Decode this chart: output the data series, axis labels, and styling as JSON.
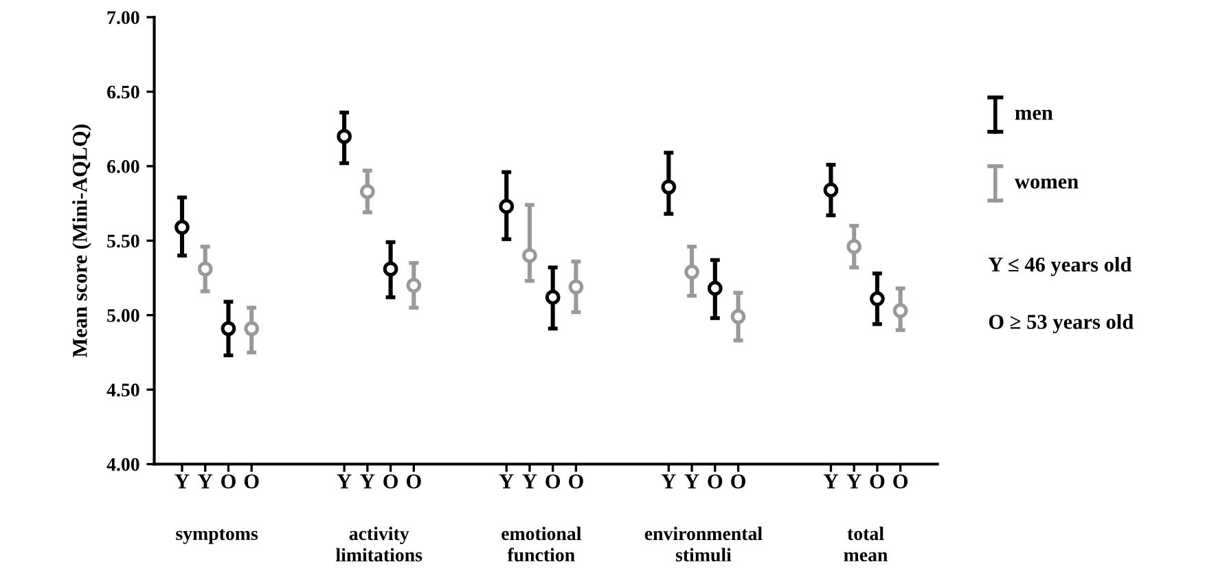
{
  "chart_data": {
    "type": "scatter",
    "ylabel": "Mean score (Mini-AQLQ)",
    "categories": [
      "Y",
      "Y",
      "O",
      "O",
      null,
      null,
      null,
      "Y",
      "Y",
      "O",
      "O",
      null,
      null,
      null,
      "Y",
      "Y",
      "O",
      "O",
      null,
      null,
      null,
      "Y",
      "Y",
      "O",
      "O",
      null,
      null,
      null,
      "Y",
      "Y",
      "O",
      "O"
    ],
    "series": [
      {
        "name": "men",
        "color": "#000000",
        "values": [
          5.59,
          null,
          4.91,
          null,
          null,
          null,
          null,
          6.2,
          null,
          5.31,
          null,
          null,
          null,
          null,
          5.73,
          null,
          5.12,
          null,
          null,
          null,
          null,
          5.86,
          null,
          5.18,
          null,
          null,
          null,
          null,
          5.84,
          null,
          5.11,
          null
        ],
        "errors": [
          [
            5.4,
            5.79
          ],
          null,
          [
            4.73,
            5.09
          ],
          null,
          null,
          null,
          null,
          [
            6.02,
            6.36
          ],
          null,
          [
            5.12,
            5.49
          ],
          null,
          null,
          null,
          null,
          [
            5.51,
            5.96
          ],
          null,
          [
            4.91,
            5.32
          ],
          null,
          null,
          null,
          null,
          [
            5.68,
            6.09
          ],
          null,
          [
            4.98,
            5.37
          ],
          null,
          null,
          null,
          null,
          [
            5.67,
            6.01
          ],
          null,
          [
            4.94,
            5.28
          ],
          null
        ]
      },
      {
        "name": "women",
        "color": "#999999",
        "values": [
          null,
          5.31,
          null,
          4.91,
          null,
          null,
          null,
          null,
          5.83,
          null,
          5.2,
          null,
          null,
          null,
          null,
          5.4,
          null,
          5.19,
          null,
          null,
          null,
          null,
          5.29,
          null,
          4.99,
          null,
          null,
          null,
          null,
          5.46,
          null,
          5.03
        ],
        "errors": [
          null,
          [
            5.16,
            5.46
          ],
          null,
          [
            4.75,
            5.05
          ],
          null,
          null,
          null,
          null,
          [
            5.69,
            5.97
          ],
          null,
          [
            5.05,
            5.35
          ],
          null,
          null,
          null,
          null,
          [
            5.23,
            5.74
          ],
          null,
          [
            5.02,
            5.36
          ],
          null,
          null,
          null,
          null,
          [
            5.13,
            5.46
          ],
          null,
          [
            4.83,
            5.15
          ],
          null,
          null,
          null,
          null,
          [
            5.32,
            5.6
          ],
          null,
          [
            4.9,
            5.18
          ]
        ]
      }
    ],
    "ylim": [
      4,
      7
    ],
    "yticks": [
      {
        "value": 4,
        "label": "4.00"
      },
      {
        "value": 4.5,
        "label": "4.50"
      },
      {
        "value": 5,
        "label": "5.00"
      },
      {
        "value": 5.5,
        "label": "5.50"
      },
      {
        "value": 6,
        "label": "6.00"
      },
      {
        "value": 6.5,
        "label": "6.50"
      },
      {
        "value": 7,
        "label": "7.00"
      }
    ],
    "marker": "circle",
    "grid": false,
    "legend": "right",
    "annotations": [
      "symptoms",
      "activity\nlimitations",
      "emotional\nfunction",
      "environmental\nstimuli",
      "total\nmean",
      "Y ≤ 46 years old",
      "O ≥ 53 years old"
    ]
  }
}
